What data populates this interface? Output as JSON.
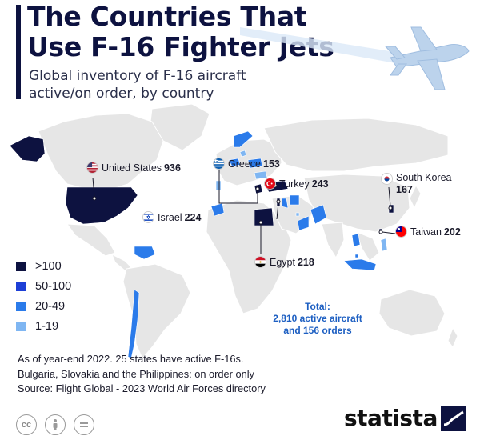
{
  "header": {
    "title": "The Countries That Use F-16 Fighter Jets",
    "subtitle": "Global inventory of F-16 aircraft active/on order, by country"
  },
  "map": {
    "callouts": [
      {
        "country": "United States",
        "value": "936",
        "flag": "us-flag-icon"
      },
      {
        "country": "Greece",
        "value": "153",
        "flag": "greece-flag-icon"
      },
      {
        "country": "Turkey",
        "value": "243",
        "flag": "turkey-flag-icon"
      },
      {
        "country": "South Korea",
        "value": "167",
        "flag": "south-korea-flag-icon"
      },
      {
        "country": "Israel",
        "value": "224",
        "flag": "israel-flag-icon"
      },
      {
        "country": "Taiwan",
        "value": "202",
        "flag": "taiwan-flag-icon"
      },
      {
        "country": "Egypt",
        "value": "218",
        "flag": "egypt-flag-icon"
      }
    ],
    "total_line1": "Total:",
    "total_line2": "2,810 active aircraft",
    "total_line3": "and 156 orders"
  },
  "legend": {
    "items": [
      {
        "label": ">100",
        "color": "#0d1240"
      },
      {
        "label": "50-100",
        "color": "#1d3fd6"
      },
      {
        "label": "20-49",
        "color": "#2b7bea"
      },
      {
        "label": "1-19",
        "color": "#7fb6f2"
      }
    ]
  },
  "colors": {
    "land": "#e6e6e6",
    "accent": "#0d1240"
  },
  "footer": {
    "note1": "As of year-end 2022. 25 states have active F-16s.",
    "note2": "Bulgaria, Slovakia and the Philippines: on order only",
    "source": "Source: Flight Global - 2023 World Air Forces directory",
    "brand": "statista"
  }
}
